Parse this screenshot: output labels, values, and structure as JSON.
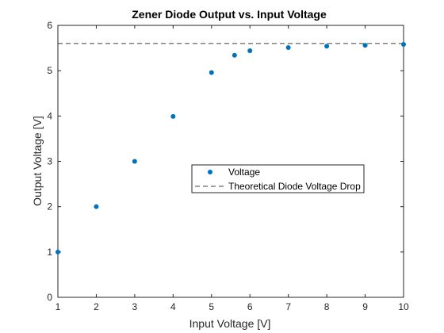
{
  "chart_data": {
    "type": "scatter",
    "title": "Zener Diode Output vs. Input Voltage",
    "xlabel": "Input Voltage [V]",
    "ylabel": "Output Voltage [V]",
    "xlim": [
      1,
      10
    ],
    "ylim": [
      0,
      6
    ],
    "x_ticks": [
      "1",
      "2",
      "3",
      "4",
      "5",
      "6",
      "7",
      "8",
      "9",
      "10"
    ],
    "y_ticks": [
      "0",
      "1",
      "2",
      "3",
      "4",
      "5",
      "6"
    ],
    "grid": false,
    "legend_position": "center-right",
    "series": [
      {
        "name": "Voltage",
        "kind": "markers",
        "color": "#0072bd",
        "x": [
          1,
          2,
          3,
          4,
          5,
          5.6,
          6,
          7,
          8,
          9,
          10
        ],
        "y": [
          1.0,
          2.0,
          3.0,
          3.99,
          4.96,
          5.34,
          5.44,
          5.51,
          5.54,
          5.56,
          5.58
        ]
      },
      {
        "name": "Theoretical Diode Voltage Drop",
        "kind": "dashed-line",
        "color": "#000000",
        "y": 5.6
      }
    ]
  }
}
